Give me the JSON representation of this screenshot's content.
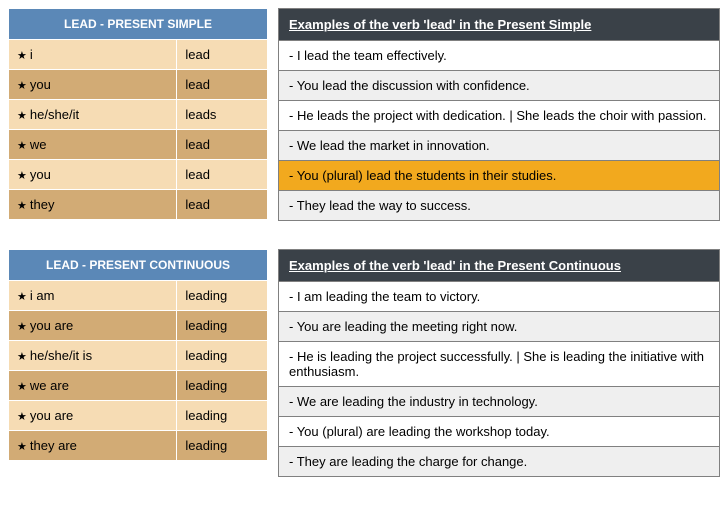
{
  "colors": {
    "header_blue_bg": "#5b88b7",
    "header_blue_text": "#ffffff",
    "row_light": "#f6dcb4",
    "row_dark": "#d2ab75",
    "examples_header_bg": "#3a4148",
    "examples_header_text": "#ffffff",
    "examples_row_even": "#ffffff",
    "examples_row_odd": "#efefef",
    "highlight_bg": "#f2a91e",
    "border_gray": "#808080",
    "text": "#000000"
  },
  "sections": [
    {
      "conj_header": "LEAD - PRESENT SIMPLE",
      "examples_header": "Examples of the verb 'lead' in the Present Simple",
      "rows": [
        {
          "pronoun": "i",
          "verb": "lead",
          "example": "- I lead the team effectively.",
          "highlight": false
        },
        {
          "pronoun": "you",
          "verb": "lead",
          "example": "- You lead the discussion with confidence.",
          "highlight": false
        },
        {
          "pronoun": "he/she/it",
          "verb": "leads",
          "example": "- He leads the project with dedication. | She leads the choir with passion.",
          "highlight": false
        },
        {
          "pronoun": "we",
          "verb": "lead",
          "example": "- We lead the market in innovation.",
          "highlight": false
        },
        {
          "pronoun": "you",
          "verb": "lead",
          "example": "- You (plural) lead the students in their studies.",
          "highlight": true
        },
        {
          "pronoun": "they",
          "verb": "lead",
          "example": "- They lead the way to success.",
          "highlight": false
        }
      ]
    },
    {
      "conj_header": "LEAD - PRESENT CONTINUOUS",
      "examples_header": "Examples of the verb 'lead' in the Present Continuous",
      "rows": [
        {
          "pronoun": "i am",
          "verb": "leading",
          "example": "- I am leading the team to victory.",
          "highlight": false
        },
        {
          "pronoun": "you are",
          "verb": "leading",
          "example": "- You are leading the meeting right now.",
          "highlight": false
        },
        {
          "pronoun": "he/she/it is",
          "verb": "leading",
          "example": "- He is leading the project successfully. | She is leading the initiative with enthusiasm.",
          "highlight": false
        },
        {
          "pronoun": "we are",
          "verb": "leading",
          "example": "- We are leading the industry in technology.",
          "highlight": false
        },
        {
          "pronoun": "you are",
          "verb": "leading",
          "example": "- You (plural) are leading the workshop today.",
          "highlight": false
        },
        {
          "pronoun": "they are",
          "verb": "leading",
          "example": "- They are leading the charge for change.",
          "highlight": false
        }
      ]
    }
  ]
}
